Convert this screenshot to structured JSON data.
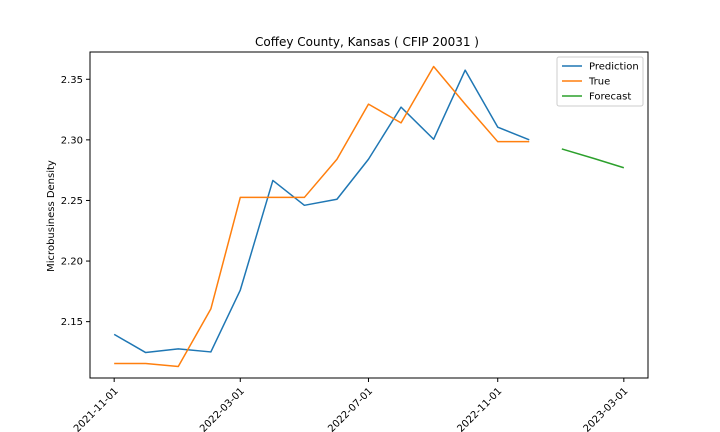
{
  "chart_data": {
    "type": "line",
    "title": "Coffey County, Kansas ( CFIP 20031 )",
    "xlabel": "",
    "ylabel": "Microbusiness Density",
    "x_ticks": [
      "2021-11-01",
      "2022-03-01",
      "2022-07-01",
      "2022-11-01",
      "2023-03-01"
    ],
    "y_ticks": [
      2.15,
      2.2,
      2.25,
      2.3,
      2.35
    ],
    "xlim": [
      "2021-10-09",
      "2023-03-24"
    ],
    "ylim": [
      2.1035,
      2.3725
    ],
    "legend_position": "top-right",
    "grid": false,
    "series": [
      {
        "name": "Prediction",
        "color": "#1f77b4",
        "x": [
          "2021-11-01",
          "2021-12-01",
          "2022-01-01",
          "2022-02-01",
          "2022-03-01",
          "2022-04-01",
          "2022-05-01",
          "2022-06-01",
          "2022-07-01",
          "2022-08-01",
          "2022-09-01",
          "2022-10-01",
          "2022-11-01",
          "2022-12-01"
        ],
        "values": [
          2.1395,
          2.1245,
          2.1275,
          2.125,
          2.176,
          2.2665,
          2.246,
          2.251,
          2.284,
          2.327,
          2.3005,
          2.3575,
          2.3105,
          2.3
        ]
      },
      {
        "name": "True",
        "color": "#ff7f0e",
        "x": [
          "2021-11-01",
          "2021-12-01",
          "2022-01-01",
          "2022-02-01",
          "2022-03-01",
          "2022-04-01",
          "2022-05-01",
          "2022-06-01",
          "2022-07-01",
          "2022-08-01",
          "2022-09-01",
          "2022-10-01",
          "2022-11-01",
          "2022-12-01"
        ],
        "values": [
          2.1155,
          2.1155,
          2.113,
          2.1605,
          2.2525,
          2.2525,
          2.2525,
          2.284,
          2.3295,
          2.314,
          2.3605,
          2.3295,
          2.2985,
          2.2985
        ]
      },
      {
        "name": "Forecast",
        "color": "#2ca02c",
        "x": [
          "2023-01-01",
          "2023-02-01",
          "2023-03-01"
        ],
        "values": [
          2.2925,
          2.2845,
          2.277
        ]
      }
    ]
  }
}
